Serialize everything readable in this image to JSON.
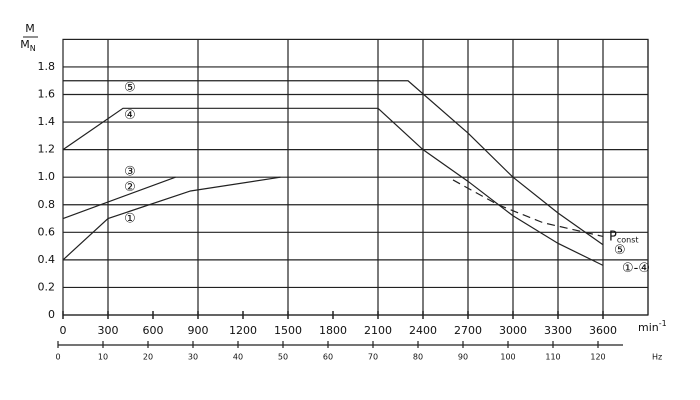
{
  "chart_data": {
    "type": "line",
    "ylabel_num": "M",
    "ylabel_den": "M",
    "ylabel_den_sub": "N",
    "xlabel": "min",
    "xlabel_sup": "-1",
    "x2label": "Hz",
    "xlim": [
      0,
      3900
    ],
    "xticks": [
      0,
      300,
      600,
      900,
      1200,
      1500,
      1800,
      2100,
      2400,
      2700,
      3000,
      3300,
      3600
    ],
    "xgrid": [
      300,
      900,
      1500,
      2100,
      2400,
      2700,
      3000,
      3300,
      3600,
      3900
    ],
    "ylim": [
      0,
      2.0
    ],
    "yticks": [
      0,
      {
        "value": 0.2,
        "label": "0.2"
      },
      {
        "value": 0.4,
        "label": "0.4"
      },
      {
        "value": 0.6,
        "label": "0.6"
      },
      {
        "value": 0.8,
        "label": "0.8"
      },
      {
        "value": 1.0,
        "label": "1.0"
      },
      {
        "value": 1.2,
        "label": "1.2"
      },
      {
        "value": 1.4,
        "label": "1.4"
      },
      {
        "value": 1.6,
        "label": "1.6"
      },
      {
        "value": 1.8,
        "label": "1.8"
      }
    ],
    "x2lim": [
      0,
      130
    ],
    "x2ticks": [
      0,
      10,
      20,
      30,
      40,
      50,
      60,
      70,
      80,
      90,
      100,
      110,
      120
    ],
    "grid": true,
    "series": [
      {
        "color": "#222",
        "dash": false,
        "x": [
          0,
          300,
          850,
          1450
        ],
        "values": [
          0.4,
          0.7,
          0.9,
          1.0
        ]
      },
      {
        "color": "#222",
        "dash": false,
        "x": [
          0,
          750
        ],
        "values": [
          0.7,
          1.0
        ]
      },
      {
        "color": "#222",
        "dash": false,
        "x": [
          0,
          400,
          2100,
          2400,
          2700,
          3000,
          3300,
          3600
        ],
        "values": [
          1.2,
          1.5,
          1.5,
          1.2,
          0.97,
          0.72,
          0.52,
          0.36
        ]
      },
      {
        "color": "#222",
        "dash": false,
        "x": [
          0,
          2300,
          2700,
          3000,
          3300,
          3600
        ],
        "values": [
          1.7,
          1.7,
          1.32,
          1.0,
          0.74,
          0.51
        ]
      },
      {
        "color": "#222",
        "dash": true,
        "x": [
          2600,
          2900,
          3200,
          3600
        ],
        "values": [
          0.98,
          0.8,
          0.67,
          0.57
        ]
      }
    ],
    "annotations": [
      {
        "text": "⑤"
      },
      {
        "text": "④"
      },
      {
        "text": "③"
      },
      {
        "text": "②"
      },
      {
        "text": "①"
      },
      {
        "text": "⑤"
      },
      {
        "text": "①-④"
      },
      {
        "text": "P",
        "sub": "const"
      }
    ]
  }
}
